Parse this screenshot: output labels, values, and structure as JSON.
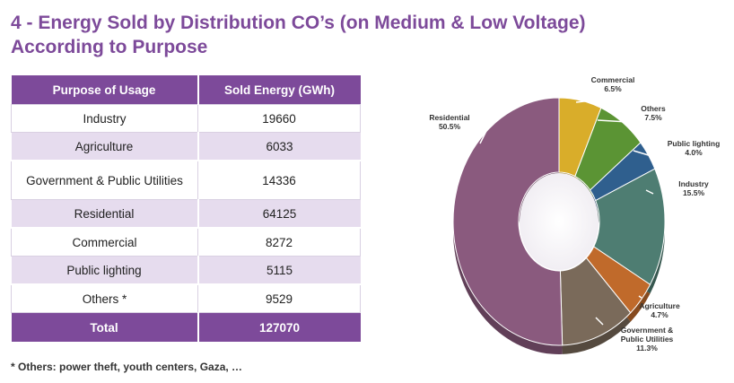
{
  "header": {
    "title_line1": "4 -  Energy Sold by Distribution CO’s (on Medium & Low Voltage)",
    "title_line2": "According to Purpose"
  },
  "table": {
    "columns": [
      "Purpose of Usage",
      "Sold Energy (GWh)"
    ],
    "rows": [
      {
        "purpose": "Industry",
        "value": "19660"
      },
      {
        "purpose": "Agriculture",
        "value": "6033"
      },
      {
        "purpose": "Government & Public Utilities",
        "value": "14336"
      },
      {
        "purpose": "Residential",
        "value": "64125"
      },
      {
        "purpose": "Commercial",
        "value": "8272"
      },
      {
        "purpose": "Public lighting",
        "value": "5115"
      },
      {
        "purpose": "Others *",
        "value": "9529"
      }
    ],
    "total": {
      "label": "Total",
      "value": "127070"
    }
  },
  "footnote": "*   Others: power theft, youth centers, Gaza, …",
  "chart_data": {
    "type": "pie",
    "style": "donut-3d",
    "slices": [
      {
        "name": "Commercial",
        "label_lines": [
          "Commercial",
          "6.5%"
        ],
        "value": 6.5,
        "color": "#d9ad2a"
      },
      {
        "name": "Others",
        "label_lines": [
          "Others",
          "7.5%"
        ],
        "value": 7.5,
        "color": "#5b9434"
      },
      {
        "name": "Public lighting",
        "label_lines": [
          "Public lighting",
          "4.0%"
        ],
        "value": 4.0,
        "color": "#2f5f8e"
      },
      {
        "name": "Industry",
        "label_lines": [
          "Industry",
          "15.5%"
        ],
        "value": 15.5,
        "color": "#4e7d72"
      },
      {
        "name": "Agriculture",
        "label_lines": [
          "Agriculture",
          "4.7%"
        ],
        "value": 4.7,
        "color": "#c06a2b"
      },
      {
        "name": "Government & Public Utilities",
        "label_lines": [
          "Government &",
          "Public Utilities",
          "11.3%"
        ],
        "value": 11.3,
        "color": "#7a6a5a"
      },
      {
        "name": "Residential",
        "label_lines": [
          "Residential",
          "50.5%"
        ],
        "value": 50.5,
        "color": "#8a5a7e"
      }
    ]
  }
}
